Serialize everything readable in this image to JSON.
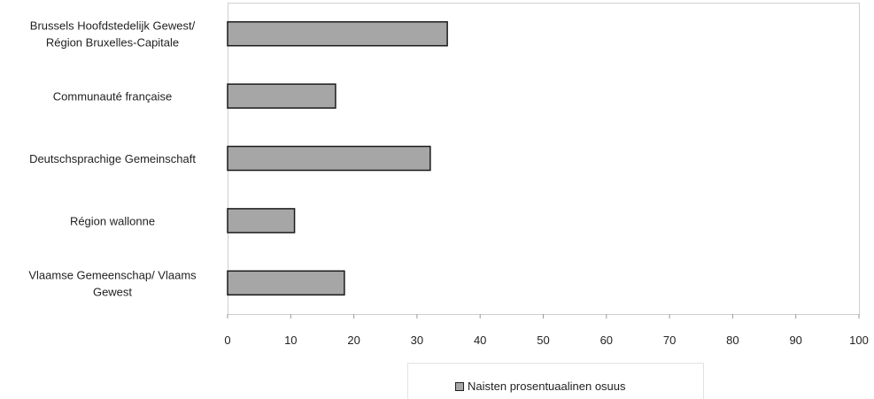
{
  "chart_data": {
    "type": "bar",
    "orientation": "horizontal",
    "categories": [
      [
        "Brussels Hoofdstedelijk Gewest/",
        "Région Bruxelles-Capitale"
      ],
      [
        "Communauté française"
      ],
      [
        "Deutschsprachige Gemeinschaft"
      ],
      [
        "Région wallonne"
      ],
      [
        "Vlaamse Gemeenschap/ Vlaams",
        "Gewest"
      ]
    ],
    "series": [
      {
        "name": "Naisten prosentuaalinen osuus",
        "values": [
          34.8,
          17.1,
          32.1,
          10.6,
          18.5
        ]
      }
    ],
    "xlim": [
      0,
      100
    ],
    "xticks": [
      "0",
      "10",
      "20",
      "30",
      "40",
      "50",
      "60",
      "70",
      "80",
      "90",
      "100"
    ],
    "grid": false,
    "legend_position": "bottom",
    "bar_color": "#a6a6a6"
  },
  "legend": {
    "label": "Naisten prosentuaalinen osuus"
  }
}
